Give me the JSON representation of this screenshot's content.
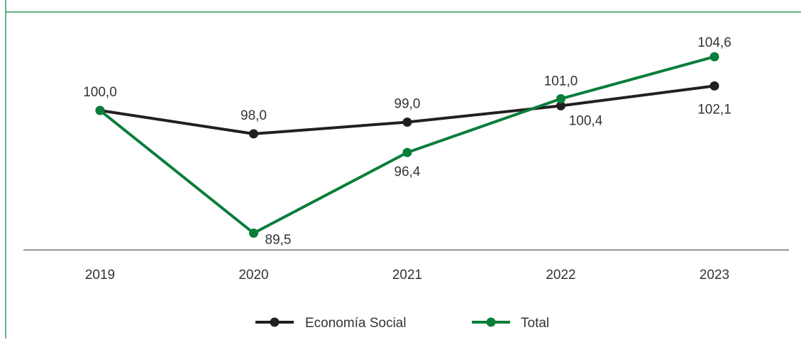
{
  "chart_data": {
    "type": "line",
    "title": "",
    "xlabel": "",
    "ylabel": "",
    "categories": [
      "2019",
      "2020",
      "2021",
      "2022",
      "2023"
    ],
    "series": [
      {
        "name": "Economía Social",
        "values": [
          100.0,
          98.0,
          99.0,
          100.4,
          102.1
        ],
        "labels": [
          "100,0",
          "98,0",
          "99,0",
          "100,4",
          "102,1"
        ],
        "color": "#231f20"
      },
      {
        "name": "Total",
        "values": [
          100.0,
          89.5,
          96.4,
          101.0,
          104.6
        ],
        "labels": [
          "",
          "89,5",
          "96,4",
          "101,0",
          "104,6"
        ],
        "color": "#0a7d3a"
      }
    ],
    "ylim": [
      87,
      106
    ],
    "grid": false,
    "legend_position": "bottom-center",
    "frame_color": "#0a7d3a"
  }
}
